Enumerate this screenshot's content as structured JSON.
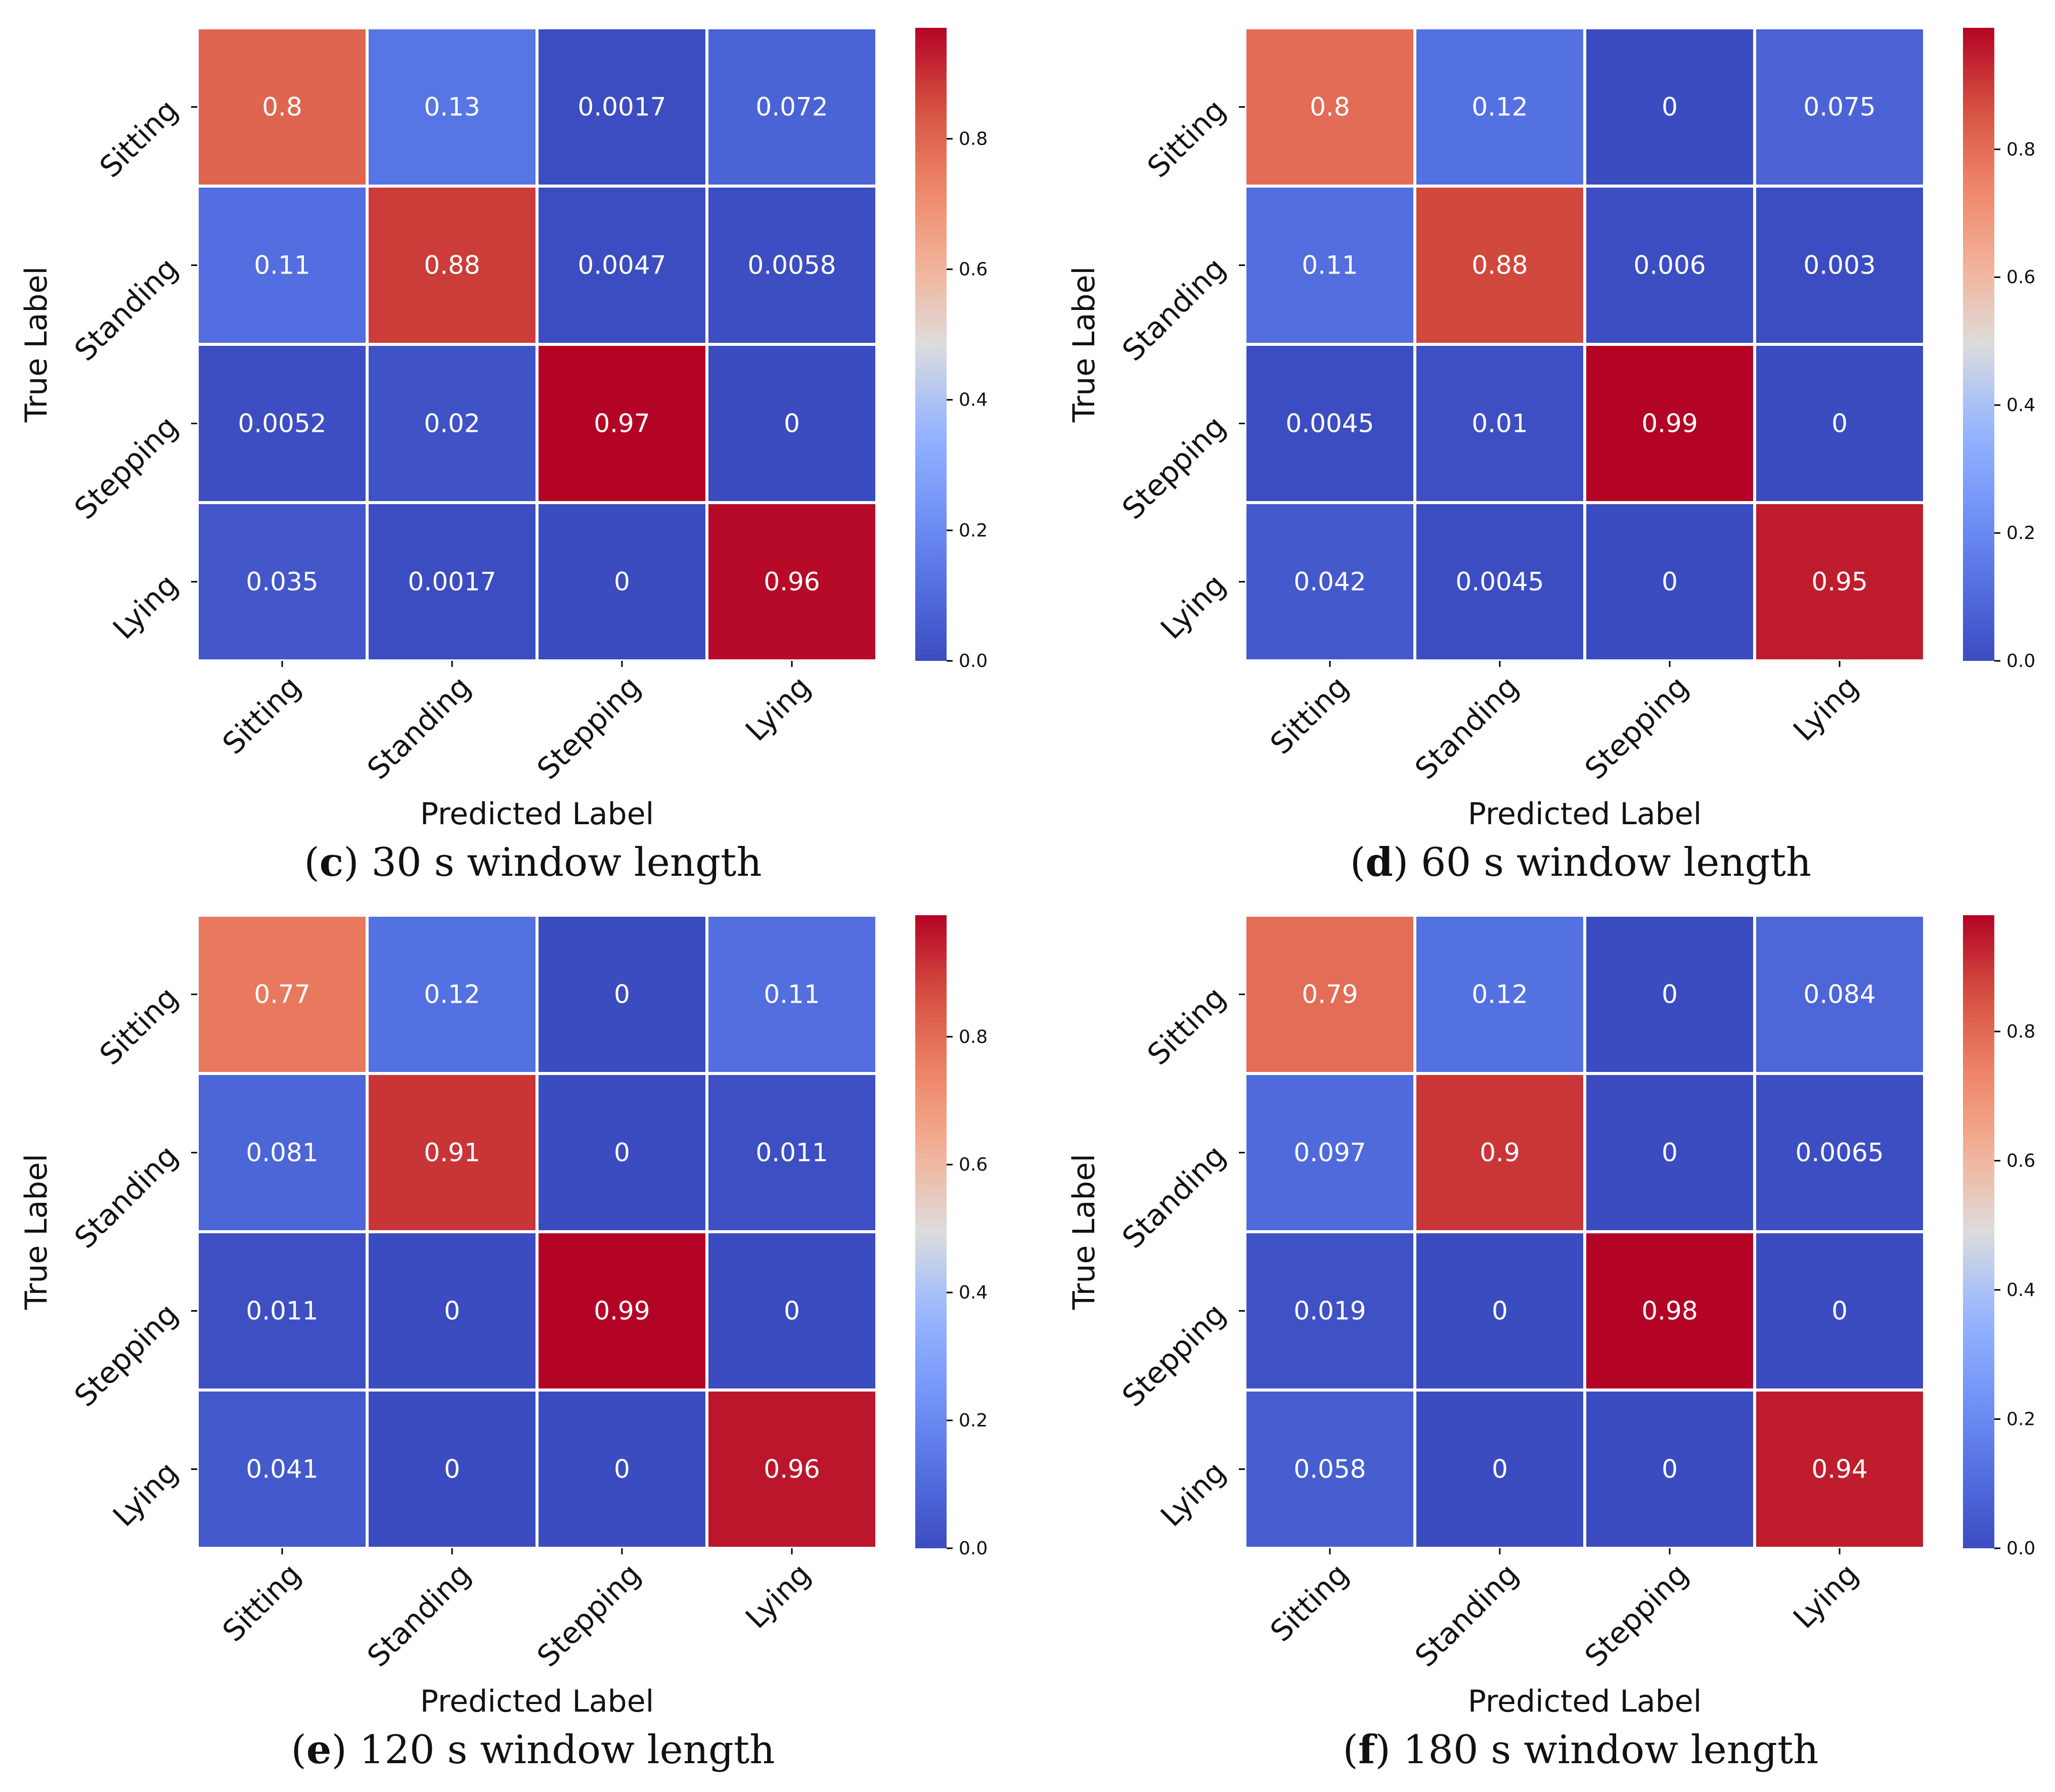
{
  "chart_data": [
    {
      "type": "heatmap",
      "caption_letter": "c",
      "caption_text": " 30 s window length",
      "xlabel": "Predicted Label",
      "ylabel": "True Label",
      "x_categories": [
        "Sitting",
        "Standing",
        "Stepping",
        "Lying"
      ],
      "y_categories": [
        "Sitting",
        "Standing",
        "Stepping",
        "Lying"
      ],
      "values": [
        [
          0.8,
          0.13,
          0.0017,
          0.072
        ],
        [
          0.11,
          0.88,
          0.0047,
          0.0058
        ],
        [
          0.0052,
          0.02,
          0.97,
          0
        ],
        [
          0.035,
          0.0017,
          0,
          0.96
        ]
      ],
      "value_labels": [
        [
          "0.8",
          "0.13",
          "0.0017",
          "0.072"
        ],
        [
          "0.11",
          "0.88",
          "0.0047",
          "0.0058"
        ],
        [
          "0.0052",
          "0.02",
          "0.97",
          "0"
        ],
        [
          "0.035",
          "0.0017",
          "0",
          "0.96"
        ]
      ],
      "colorbar": {
        "range": [
          0,
          0.97
        ],
        "ticks": [
          0.0,
          0.2,
          0.4,
          0.6,
          0.8
        ],
        "tick_labels": [
          "0.0",
          "0.2",
          "0.4",
          "0.6",
          "0.8"
        ]
      }
    },
    {
      "type": "heatmap",
      "caption_letter": "d",
      "caption_text": " 60 s window length",
      "xlabel": "Predicted Label",
      "ylabel": "True Label",
      "x_categories": [
        "Sitting",
        "Standing",
        "Stepping",
        "Lying"
      ],
      "y_categories": [
        "Sitting",
        "Standing",
        "Stepping",
        "Lying"
      ],
      "values": [
        [
          0.8,
          0.12,
          0,
          0.075
        ],
        [
          0.11,
          0.88,
          0.006,
          0.003
        ],
        [
          0.0045,
          0.01,
          0.99,
          0
        ],
        [
          0.042,
          0.0045,
          0,
          0.95
        ]
      ],
      "value_labels": [
        [
          "0.8",
          "0.12",
          "0",
          "0.075"
        ],
        [
          "0.11",
          "0.88",
          "0.006",
          "0.003"
        ],
        [
          "0.0045",
          "0.01",
          "0.99",
          "0"
        ],
        [
          "0.042",
          "0.0045",
          "0",
          "0.95"
        ]
      ],
      "colorbar": {
        "range": [
          0,
          0.99
        ],
        "ticks": [
          0.0,
          0.2,
          0.4,
          0.6,
          0.8
        ],
        "tick_labels": [
          "0.0",
          "0.2",
          "0.4",
          "0.6",
          "0.8"
        ]
      }
    },
    {
      "type": "heatmap",
      "caption_letter": "e",
      "caption_text": " 120 s window length",
      "xlabel": "Predicted Label",
      "ylabel": "True Label",
      "x_categories": [
        "Sitting",
        "Standing",
        "Stepping",
        "Lying"
      ],
      "y_categories": [
        "Sitting",
        "Standing",
        "Stepping",
        "Lying"
      ],
      "values": [
        [
          0.77,
          0.12,
          0,
          0.11
        ],
        [
          0.081,
          0.91,
          0,
          0.011
        ],
        [
          0.011,
          0,
          0.99,
          0
        ],
        [
          0.041,
          0,
          0,
          0.96
        ]
      ],
      "value_labels": [
        [
          "0.77",
          "0.12",
          "0",
          "0.11"
        ],
        [
          "0.081",
          "0.91",
          "0",
          "0.011"
        ],
        [
          "0.011",
          "0",
          "0.99",
          "0"
        ],
        [
          "0.041",
          "0",
          "0",
          "0.96"
        ]
      ],
      "colorbar": {
        "range": [
          0,
          0.99
        ],
        "ticks": [
          0.0,
          0.2,
          0.4,
          0.6,
          0.8
        ],
        "tick_labels": [
          "0.0",
          "0.2",
          "0.4",
          "0.6",
          "0.8"
        ]
      }
    },
    {
      "type": "heatmap",
      "caption_letter": "f",
      "caption_text": " 180 s window length",
      "xlabel": "Predicted Label",
      "ylabel": "True Label",
      "x_categories": [
        "Sitting",
        "Standing",
        "Stepping",
        "Lying"
      ],
      "y_categories": [
        "Sitting",
        "Standing",
        "Stepping",
        "Lying"
      ],
      "values": [
        [
          0.79,
          0.12,
          0,
          0.084
        ],
        [
          0.097,
          0.9,
          0,
          0.0065
        ],
        [
          0.019,
          0,
          0.98,
          0
        ],
        [
          0.058,
          0,
          0,
          0.94
        ]
      ],
      "value_labels": [
        [
          "0.79",
          "0.12",
          "0",
          "0.084"
        ],
        [
          "0.097",
          "0.9",
          "0",
          "0.0065"
        ],
        [
          "0.019",
          "0",
          "0.98",
          "0"
        ],
        [
          "0.058",
          "0",
          "0",
          "0.94"
        ]
      ],
      "colorbar": {
        "range": [
          0,
          0.98
        ],
        "ticks": [
          0.0,
          0.2,
          0.4,
          0.6,
          0.8
        ],
        "tick_labels": [
          "0.0",
          "0.2",
          "0.4",
          "0.6",
          "0.8"
        ]
      }
    }
  ]
}
